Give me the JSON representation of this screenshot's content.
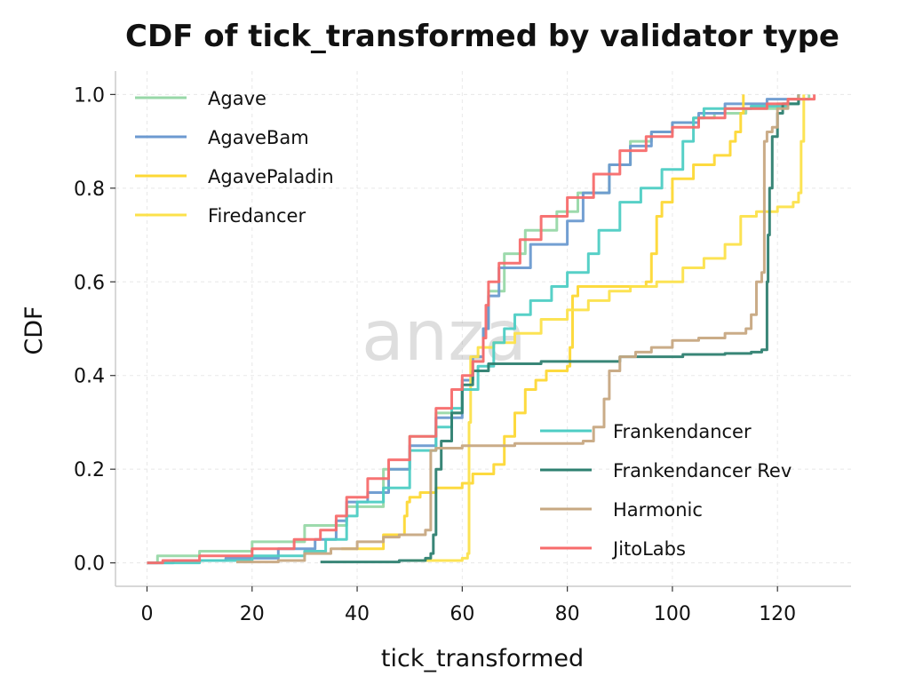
{
  "chart_data": {
    "type": "line",
    "title": "CDF of tick_transformed by validator type",
    "xlabel": "tick_transformed",
    "ylabel": "CDF",
    "xlim": [
      -6,
      134
    ],
    "ylim": [
      -0.05,
      1.05
    ],
    "xticks": [
      "0",
      "20",
      "40",
      "60",
      "80",
      "100",
      "120"
    ],
    "yticks": [
      "0.0",
      "0.2",
      "0.4",
      "0.6",
      "0.8",
      "1.0"
    ],
    "grid": true,
    "watermark": "anza",
    "series": [
      {
        "name": "Agave",
        "color": "#98d8a8",
        "legend": "upper-left",
        "points": [
          [
            0,
            0
          ],
          [
            2,
            0.015
          ],
          [
            10,
            0.025
          ],
          [
            20,
            0.045
          ],
          [
            30,
            0.08
          ],
          [
            38,
            0.12
          ],
          [
            45,
            0.2
          ],
          [
            50,
            0.27
          ],
          [
            55,
            0.32
          ],
          [
            60,
            0.39
          ],
          [
            62,
            0.43
          ],
          [
            64,
            0.5
          ],
          [
            65,
            0.58
          ],
          [
            68,
            0.66
          ],
          [
            72,
            0.71
          ],
          [
            78,
            0.75
          ],
          [
            82,
            0.79
          ],
          [
            88,
            0.85
          ],
          [
            92,
            0.9
          ],
          [
            96,
            0.92
          ],
          [
            100,
            0.94
          ],
          [
            104,
            0.95
          ],
          [
            108,
            0.96
          ],
          [
            114,
            0.97
          ],
          [
            120,
            0.98
          ],
          [
            124,
            0.99
          ],
          [
            126,
            1.0
          ]
        ]
      },
      {
        "name": "AgaveBam",
        "color": "#6c9ad0",
        "legend": "upper-left",
        "points": [
          [
            0,
            0
          ],
          [
            5,
            0.005
          ],
          [
            15,
            0.01
          ],
          [
            25,
            0.03
          ],
          [
            32,
            0.05
          ],
          [
            36,
            0.09
          ],
          [
            38,
            0.13
          ],
          [
            42,
            0.15
          ],
          [
            46,
            0.2
          ],
          [
            50,
            0.25
          ],
          [
            55,
            0.31
          ],
          [
            60,
            0.39
          ],
          [
            62,
            0.44
          ],
          [
            64,
            0.5
          ],
          [
            65,
            0.57
          ],
          [
            67,
            0.63
          ],
          [
            73,
            0.68
          ],
          [
            80,
            0.73
          ],
          [
            83,
            0.79
          ],
          [
            88,
            0.85
          ],
          [
            92,
            0.89
          ],
          [
            96,
            0.92
          ],
          [
            100,
            0.94
          ],
          [
            105,
            0.96
          ],
          [
            110,
            0.98
          ],
          [
            118,
            0.99
          ],
          [
            124,
            1.0
          ]
        ]
      },
      {
        "name": "AgavePaladin",
        "color": "#fdd835",
        "legend": "upper-left",
        "points": [
          [
            37,
            0.03
          ],
          [
            45,
            0.06
          ],
          [
            49,
            0.1
          ],
          [
            49.5,
            0.13
          ],
          [
            50,
            0.14
          ],
          [
            52,
            0.15
          ],
          [
            55,
            0.16
          ],
          [
            60,
            0.17
          ],
          [
            62,
            0.19
          ],
          [
            66,
            0.21
          ],
          [
            68,
            0.27
          ],
          [
            70,
            0.32
          ],
          [
            72,
            0.37
          ],
          [
            74,
            0.39
          ],
          [
            76,
            0.41
          ],
          [
            80,
            0.42
          ],
          [
            80.5,
            0.46
          ],
          [
            81,
            0.57
          ],
          [
            82,
            0.59
          ],
          [
            95,
            0.6
          ],
          [
            96,
            0.66
          ],
          [
            97,
            0.74
          ],
          [
            98,
            0.77
          ],
          [
            100,
            0.82
          ],
          [
            104,
            0.85
          ],
          [
            108,
            0.87
          ],
          [
            111,
            0.9
          ],
          [
            112,
            0.92
          ],
          [
            113,
            0.96
          ],
          [
            113.5,
            1.0
          ]
        ]
      },
      {
        "name": "Firedancer",
        "color": "#fce14b",
        "legend": "upper-left",
        "points": [
          [
            50,
            0.005
          ],
          [
            60,
            0.01
          ],
          [
            61,
            0.02
          ],
          [
            61.3,
            0.3
          ],
          [
            61.6,
            0.44
          ],
          [
            63,
            0.46
          ],
          [
            66,
            0.47
          ],
          [
            70,
            0.49
          ],
          [
            75,
            0.52
          ],
          [
            80,
            0.54
          ],
          [
            84,
            0.56
          ],
          [
            88,
            0.58
          ],
          [
            92,
            0.59
          ],
          [
            97,
            0.6
          ],
          [
            102,
            0.63
          ],
          [
            106,
            0.65
          ],
          [
            110,
            0.68
          ],
          [
            113,
            0.74
          ],
          [
            116,
            0.75
          ],
          [
            120,
            0.76
          ],
          [
            123,
            0.77
          ],
          [
            124,
            0.79
          ],
          [
            124.5,
            0.9
          ],
          [
            125,
            1.0
          ]
        ]
      },
      {
        "name": "Frankendancer",
        "color": "#4ecdc4",
        "legend": "lower-right",
        "points": [
          [
            0,
            0
          ],
          [
            10,
            0.005
          ],
          [
            20,
            0.015
          ],
          [
            30,
            0.025
          ],
          [
            34,
            0.05
          ],
          [
            38,
            0.1
          ],
          [
            40,
            0.13
          ],
          [
            45,
            0.16
          ],
          [
            50,
            0.24
          ],
          [
            55,
            0.29
          ],
          [
            58,
            0.33
          ],
          [
            60,
            0.37
          ],
          [
            63,
            0.42
          ],
          [
            66,
            0.47
          ],
          [
            68,
            0.5
          ],
          [
            70,
            0.53
          ],
          [
            73,
            0.56
          ],
          [
            77,
            0.59
          ],
          [
            80,
            0.62
          ],
          [
            84,
            0.66
          ],
          [
            86,
            0.71
          ],
          [
            90,
            0.77
          ],
          [
            94,
            0.8
          ],
          [
            98,
            0.84
          ],
          [
            102,
            0.9
          ],
          [
            104,
            0.95
          ],
          [
            106,
            0.97
          ],
          [
            115,
            0.975
          ],
          [
            122,
            0.98
          ],
          [
            124,
            1.0
          ]
        ]
      },
      {
        "name": "Frankendancer Rev",
        "color": "#2e8070",
        "legend": "lower-right",
        "points": [
          [
            33,
            0.002
          ],
          [
            48,
            0.005
          ],
          [
            53,
            0.01
          ],
          [
            54,
            0.02
          ],
          [
            54.5,
            0.06
          ],
          [
            55,
            0.2
          ],
          [
            56,
            0.26
          ],
          [
            58,
            0.32
          ],
          [
            60,
            0.38
          ],
          [
            62,
            0.41
          ],
          [
            65,
            0.425
          ],
          [
            75,
            0.43
          ],
          [
            90,
            0.44
          ],
          [
            102,
            0.445
          ],
          [
            110,
            0.447
          ],
          [
            115,
            0.45
          ],
          [
            117,
            0.455
          ],
          [
            118,
            0.6
          ],
          [
            118.2,
            0.7
          ],
          [
            118.5,
            0.8
          ],
          [
            119,
            0.91
          ],
          [
            120,
            0.96
          ],
          [
            121,
            0.98
          ],
          [
            124,
            1.0
          ]
        ]
      },
      {
        "name": "Harmonic",
        "color": "#c7a882",
        "legend": "lower-right",
        "points": [
          [
            17,
            0.002
          ],
          [
            25,
            0.005
          ],
          [
            30,
            0.02
          ],
          [
            35,
            0.03
          ],
          [
            40,
            0.045
          ],
          [
            45,
            0.055
          ],
          [
            48,
            0.06
          ],
          [
            53,
            0.07
          ],
          [
            54,
            0.24
          ],
          [
            55,
            0.245
          ],
          [
            60,
            0.25
          ],
          [
            70,
            0.255
          ],
          [
            80,
            0.255
          ],
          [
            83,
            0.26
          ],
          [
            85,
            0.29
          ],
          [
            87,
            0.35
          ],
          [
            88,
            0.41
          ],
          [
            90,
            0.44
          ],
          [
            93,
            0.45
          ],
          [
            96,
            0.46
          ],
          [
            100,
            0.475
          ],
          [
            105,
            0.48
          ],
          [
            110,
            0.49
          ],
          [
            114,
            0.5
          ],
          [
            115,
            0.53
          ],
          [
            116,
            0.6
          ],
          [
            117,
            0.62
          ],
          [
            117.5,
            0.9
          ],
          [
            118,
            0.92
          ],
          [
            119,
            0.93
          ],
          [
            120,
            0.97
          ],
          [
            122,
            0.99
          ],
          [
            124,
            1.0
          ]
        ]
      },
      {
        "name": "JitoLabs",
        "color": "#f76b6b",
        "legend": "lower-right",
        "points": [
          [
            0,
            0
          ],
          [
            3,
            0.005
          ],
          [
            10,
            0.015
          ],
          [
            20,
            0.03
          ],
          [
            28,
            0.05
          ],
          [
            33,
            0.07
          ],
          [
            36,
            0.1
          ],
          [
            38,
            0.14
          ],
          [
            42,
            0.18
          ],
          [
            46,
            0.22
          ],
          [
            50,
            0.27
          ],
          [
            55,
            0.33
          ],
          [
            58,
            0.37
          ],
          [
            60,
            0.4
          ],
          [
            62,
            0.43
          ],
          [
            64,
            0.48
          ],
          [
            64.5,
            0.55
          ],
          [
            65,
            0.6
          ],
          [
            67,
            0.64
          ],
          [
            71,
            0.69
          ],
          [
            75,
            0.74
          ],
          [
            80,
            0.78
          ],
          [
            85,
            0.83
          ],
          [
            90,
            0.88
          ],
          [
            95,
            0.91
          ],
          [
            100,
            0.93
          ],
          [
            105,
            0.95
          ],
          [
            110,
            0.97
          ],
          [
            118,
            0.98
          ],
          [
            122,
            0.99
          ],
          [
            127,
            1.0
          ]
        ]
      }
    ]
  }
}
